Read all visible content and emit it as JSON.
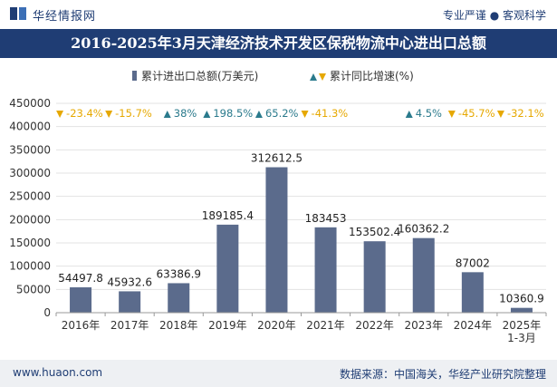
{
  "header": {
    "brand": "华经情报网",
    "slogan": "专业严谨 ● 客观科学"
  },
  "footer": {
    "website": "www.huaon.com",
    "source": "数据来源：中国海关，华经产业研究院整理"
  },
  "colors": {
    "bar": "#5b6b8c",
    "up": "#2a7a8c",
    "down": "#e6a800",
    "title_bg": "#1f3d74"
  },
  "chart_data": {
    "type": "bar",
    "title": "2016-2025年3月天津经济技术开发区保税物流中心进出口总额",
    "categories": [
      "2016年",
      "2017年",
      "2018年",
      "2019年",
      "2020年",
      "2021年",
      "2022年",
      "2023年",
      "2024年",
      "2025年\n1-3月"
    ],
    "series": [
      {
        "name": "累计进出口总额(万美元)",
        "values": [
          54497.8,
          45932.6,
          63386.9,
          189185.4,
          312612.5,
          183453,
          153502.4,
          160362.2,
          87002,
          10360.9
        ],
        "value_labels": [
          "54497.8",
          "45932.6",
          "63386.9",
          "189185.4",
          "312612.5",
          "183453",
          "153502.4",
          "160362.2",
          "87002",
          "10360.9"
        ]
      },
      {
        "name": "累计同比增速(%)",
        "values": [
          -23.4,
          -15.7,
          38,
          198.5,
          65.2,
          -41.3,
          null,
          4.5,
          -45.7,
          -32.1
        ],
        "value_labels": [
          "-23.4%",
          "-15.7%",
          "38%",
          "198.5%",
          "65.2%",
          "-41.3%",
          "",
          "4.5%",
          "-45.7%",
          "-32.1%"
        ]
      }
    ],
    "y_ticks": [
      "0",
      "50000",
      "100000",
      "150000",
      "200000",
      "250000",
      "300000",
      "350000",
      "400000",
      "450000"
    ],
    "ylim": [
      0,
      450000
    ],
    "legend_position": "top"
  }
}
